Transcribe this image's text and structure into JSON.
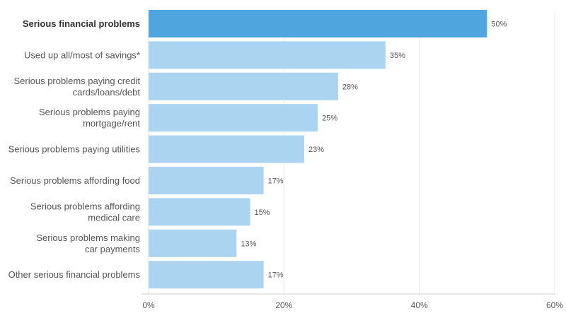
{
  "chart_data": {
    "type": "bar",
    "orientation": "horizontal",
    "title": "",
    "xlabel": "",
    "ylabel": "",
    "xlim": [
      0,
      60
    ],
    "x_ticks": [
      0,
      20,
      40,
      60
    ],
    "x_tick_labels": [
      "0%",
      "20%",
      "40%",
      "60%"
    ],
    "grid": true,
    "categories": [
      [
        "Serious financial problems"
      ],
      [
        "Used up all/most of savings*"
      ],
      [
        "Serious problems paying credit",
        "cards/loans/debt"
      ],
      [
        "Serious problems paying",
        "mortgage/rent"
      ],
      [
        "Serious problems paying utilities"
      ],
      [
        "Serious problems affording food"
      ],
      [
        "Serious problems affording",
        "medical care"
      ],
      [
        "Serious problems making",
        "car payments"
      ],
      [
        "Other serious financial problems"
      ]
    ],
    "values": [
      50,
      35,
      28,
      25,
      23,
      17,
      15,
      13,
      17
    ],
    "value_labels": [
      "50%",
      "35%",
      "28%",
      "25%",
      "23%",
      "17%",
      "15%",
      "13%",
      "17%"
    ],
    "highlight_index": 0,
    "colors": {
      "highlight": "#4fa6de",
      "bar": "#aad4ef",
      "grid": "#e6e6e6",
      "axis": "#cccccc",
      "text": "#555555"
    }
  }
}
